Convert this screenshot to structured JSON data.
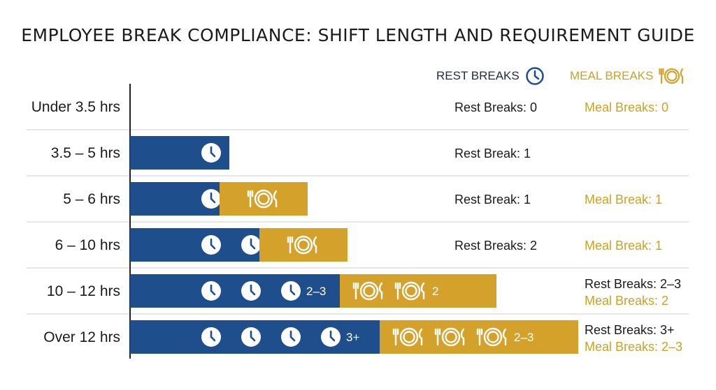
{
  "chart_data": {
    "type": "bar",
    "orientation": "horizontal",
    "stacked": true,
    "title": "EMPLOYEE BREAK COMPLIANCE: SHIFT LENGTH AND REQUIREMENT GUIDE",
    "legend_position": "top-right",
    "categories": [
      "Under 3.5 hrs",
      "3.5 – 5 hrs",
      "5 – 6 hrs",
      "6 – 10 hrs",
      "10 – 12 hrs",
      "Over 12 hrs"
    ],
    "series": [
      {
        "name": "REST BREAKS",
        "color": "#1f4e8c",
        "icon": "clock-icon",
        "icons_shown": [
          0,
          1,
          1,
          2,
          3,
          4
        ],
        "count_labels": [
          "",
          "",
          "",
          "",
          "2–3",
          "3+"
        ]
      },
      {
        "name": "MEAL BREAKS",
        "color": "#d4a22a",
        "icon": "plate-icon",
        "icons_shown": [
          0,
          0,
          1,
          1,
          2,
          3
        ],
        "count_labels": [
          "",
          "",
          "",
          "",
          "2",
          "2–3"
        ]
      }
    ],
    "row_notes": [
      {
        "rest": "Rest Breaks: 0",
        "meal": "Meal Breaks: 0"
      },
      {
        "rest": "Rest Break: 1",
        "meal": ""
      },
      {
        "rest": "Rest Break: 1",
        "meal": "Meal Break: 1"
      },
      {
        "rest": "Rest Breaks: 2",
        "meal": "Meal Break: 1"
      },
      {
        "rest": "Rest Breaks: 2–3",
        "meal": "Meal Breaks: 2"
      },
      {
        "rest": "Rest Breaks: 3+",
        "meal": "Meal Breaks: 2–3"
      }
    ],
    "grid": "horizontal row separators"
  },
  "legend": {
    "rest_label": "REST BREAKS",
    "meal_label": "MEAL BREAKS",
    "rest_color": "#1f4e8c",
    "meal_color": "#d4a22a"
  }
}
